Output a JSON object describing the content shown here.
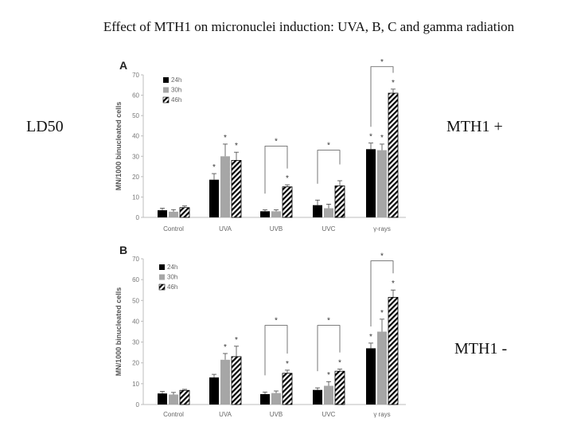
{
  "slide": {
    "title": "Effect of MTH1 on micronuclei induction: UVA, B, C and gamma radiation",
    "left_label": "LD50",
    "right_label_top": "MTH1 +",
    "right_label_bottom": "MTH1 -"
  },
  "chart_data": [
    {
      "type": "bar",
      "panel": "A",
      "ylabel": "MN/1000 binucleated cells",
      "ylim": [
        0,
        70
      ],
      "yticks": [
        0,
        10,
        20,
        30,
        40,
        50,
        60,
        70
      ],
      "categories": [
        "Control",
        "UVA",
        "UVB",
        "UVC",
        "γ-rays"
      ],
      "series": [
        {
          "name": "24h",
          "values": [
            3.5,
            18.5,
            3,
            6,
            33.5
          ],
          "errors": [
            1,
            3,
            0.7,
            2.5,
            3
          ],
          "color": "#000000",
          "pattern": "solid"
        },
        {
          "name": "30h",
          "values": [
            2.8,
            30,
            3,
            4.5,
            33
          ],
          "errors": [
            1,
            6,
            0.7,
            2,
            3
          ],
          "color": "#a6a6a6",
          "pattern": "solid"
        },
        {
          "name": "46h",
          "values": [
            4.8,
            28,
            15,
            15.5,
            61
          ],
          "errors": [
            0.8,
            4,
            1,
            2.5,
            2
          ],
          "color": "#000000",
          "pattern": "hatched"
        }
      ],
      "bar_stars": [
        {
          "category": 1,
          "series": 0,
          "label": "*"
        },
        {
          "category": 1,
          "series": 1,
          "label": "*"
        },
        {
          "category": 1,
          "series": 2,
          "label": "*"
        },
        {
          "category": 2,
          "series": 2,
          "label": "*"
        },
        {
          "category": 4,
          "series": 0,
          "label": "*"
        },
        {
          "category": 4,
          "series": 1,
          "label": "*"
        },
        {
          "category": 4,
          "series": 2,
          "label": "*"
        }
      ],
      "brackets": [
        {
          "category": 2,
          "level": 35,
          "label": "*"
        },
        {
          "category": 3,
          "level": 33,
          "label": "*"
        },
        {
          "category": 4,
          "level": 74,
          "label": "*"
        }
      ],
      "legend": "top-left"
    },
    {
      "type": "bar",
      "panel": "B",
      "ylabel": "MN/1000 binucleated cells",
      "ylim": [
        0,
        70
      ],
      "yticks": [
        0,
        10,
        20,
        30,
        40,
        50,
        60,
        70
      ],
      "categories": [
        "Control",
        "UVA",
        "UVB",
        "UVC",
        "γ rays"
      ],
      "series": [
        {
          "name": "24h",
          "values": [
            5.3,
            13,
            5,
            7,
            27
          ],
          "errors": [
            1,
            1.5,
            1,
            1,
            2.5
          ],
          "color": "#000000",
          "pattern": "solid"
        },
        {
          "name": "30h",
          "values": [
            4.8,
            21.5,
            5.5,
            9,
            35
          ],
          "errors": [
            1,
            3,
            1,
            2,
            6
          ],
          "color": "#a6a6a6",
          "pattern": "solid"
        },
        {
          "name": "46h",
          "values": [
            6.8,
            23,
            15,
            16,
            51.5
          ],
          "errors": [
            0.5,
            5,
            1.5,
            1,
            3.5
          ],
          "color": "#000000",
          "pattern": "hatched"
        }
      ],
      "bar_stars": [
        {
          "category": 1,
          "series": 1,
          "label": "*"
        },
        {
          "category": 1,
          "series": 2,
          "label": "*"
        },
        {
          "category": 2,
          "series": 2,
          "label": "*"
        },
        {
          "category": 3,
          "series": 1,
          "label": "*"
        },
        {
          "category": 3,
          "series": 2,
          "label": "*"
        },
        {
          "category": 4,
          "series": 0,
          "label": "*"
        },
        {
          "category": 4,
          "series": 1,
          "label": "*"
        },
        {
          "category": 4,
          "series": 2,
          "label": "*"
        }
      ],
      "brackets": [
        {
          "category": 2,
          "level": 38,
          "label": "*"
        },
        {
          "category": 3,
          "level": 38,
          "label": "*"
        },
        {
          "category": 4,
          "level": 69,
          "label": "*"
        }
      ],
      "legend": "top-left"
    }
  ]
}
